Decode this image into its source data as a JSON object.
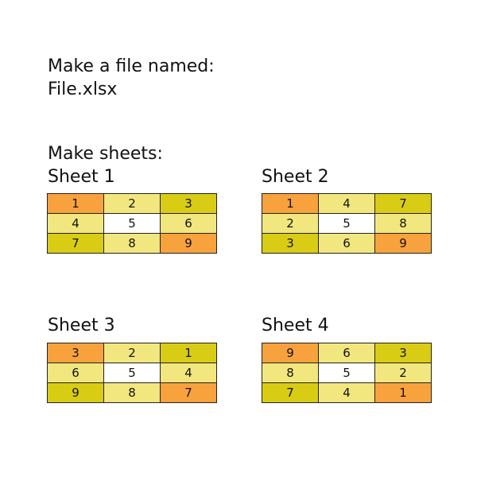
{
  "instructions": {
    "line1": "Make a file named:",
    "line2": "File.xlsx",
    "line3": "Make sheets:"
  },
  "colors": {
    "orange": "#f8a23d",
    "light": "#f2e77e",
    "white": "#ffffff",
    "olive": "#d9cc14"
  },
  "sheets": [
    {
      "title": "Sheet 1",
      "cells": [
        [
          "1",
          "2",
          "3"
        ],
        [
          "4",
          "5",
          "6"
        ],
        [
          "7",
          "8",
          "9"
        ]
      ],
      "fills": [
        [
          "orange",
          "light",
          "olive"
        ],
        [
          "light",
          "white",
          "light"
        ],
        [
          "olive",
          "light",
          "orange"
        ]
      ]
    },
    {
      "title": "Sheet 2",
      "cells": [
        [
          "1",
          "4",
          "7"
        ],
        [
          "2",
          "5",
          "8"
        ],
        [
          "3",
          "6",
          "9"
        ]
      ],
      "fills": [
        [
          "orange",
          "light",
          "olive"
        ],
        [
          "light",
          "white",
          "light"
        ],
        [
          "olive",
          "light",
          "orange"
        ]
      ]
    },
    {
      "title": "Sheet 3",
      "cells": [
        [
          "3",
          "2",
          "1"
        ],
        [
          "6",
          "5",
          "4"
        ],
        [
          "9",
          "8",
          "7"
        ]
      ],
      "fills": [
        [
          "orange",
          "light",
          "olive"
        ],
        [
          "light",
          "white",
          "light"
        ],
        [
          "olive",
          "light",
          "orange"
        ]
      ]
    },
    {
      "title": "Sheet 4",
      "cells": [
        [
          "9",
          "6",
          "3"
        ],
        [
          "8",
          "5",
          "2"
        ],
        [
          "7",
          "4",
          "1"
        ]
      ],
      "fills": [
        [
          "orange",
          "light",
          "olive"
        ],
        [
          "light",
          "white",
          "light"
        ],
        [
          "olive",
          "light",
          "orange"
        ]
      ]
    }
  ]
}
